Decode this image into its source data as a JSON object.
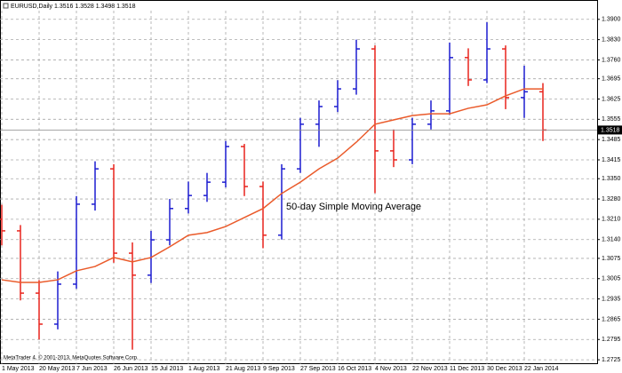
{
  "chart_data": {
    "type": "ohlc",
    "title": "EURUSD,Daily  1.3516 1.3528 1.3498 1.3518",
    "footer": "MetaTrader 4, © 2001-2013, MetaQuotes Software Corp.",
    "annotation": "50-day Simple Moving Average",
    "categories": [
      "1 May 2013",
      null,
      "20 May 2013",
      null,
      "7 Jun 2013",
      null,
      "26 Jun 2013",
      null,
      "15 Jul 2013",
      null,
      "1 Aug 2013",
      null,
      "21 Aug 2013",
      null,
      "9 Sep 2013",
      null,
      "27 Sep 2013",
      null,
      "16 Oct 2013",
      null,
      "4 Nov 2013",
      null,
      "22 Nov 2013",
      null,
      "11 Dec 2013",
      null,
      "30 Dec 2013",
      null,
      "22 Jan 2014",
      null
    ],
    "open": [
      1.321,
      1.317,
      1.2955,
      1.2848,
      1.2986,
      1.3262,
      1.3384,
      1.3093,
      1.3017,
      1.3139,
      1.3247,
      1.3292,
      1.3338,
      1.3461,
      1.3323,
      1.3155,
      1.3384,
      1.3538,
      1.3599,
      1.366,
      1.3798,
      1.3446,
      1.3415,
      1.3538,
      1.3584,
      1.3768,
      1.3691,
      1.3798,
      1.363,
      1.365
    ],
    "high": [
      1.326,
      1.319,
      1.3,
      1.303,
      1.329,
      1.341,
      1.34,
      1.313,
      1.317,
      1.328,
      1.334,
      1.337,
      1.348,
      1.347,
      1.334,
      1.34,
      1.356,
      1.362,
      1.369,
      1.383,
      1.381,
      1.352,
      1.356,
      1.362,
      1.382,
      1.38,
      1.389,
      1.381,
      1.374,
      1.368
    ],
    "low": [
      1.312,
      1.293,
      1.2795,
      1.283,
      1.297,
      1.324,
      1.306,
      1.276,
      1.299,
      1.312,
      1.323,
      1.327,
      1.332,
      1.329,
      1.311,
      1.314,
      1.337,
      1.346,
      1.358,
      1.364,
      1.33,
      1.339,
      1.34,
      1.352,
      1.357,
      1.367,
      1.368,
      1.359,
      1.356,
      1.348
    ],
    "close": [
      1.317,
      1.2955,
      1.2848,
      1.2986,
      1.3262,
      1.3384,
      1.3093,
      1.3017,
      1.3139,
      1.3247,
      1.3292,
      1.3338,
      1.3461,
      1.3323,
      1.3155,
      1.3384,
      1.3538,
      1.3599,
      1.366,
      1.3798,
      1.3446,
      1.3415,
      1.3538,
      1.3584,
      1.3768,
      1.3691,
      1.3798,
      1.363,
      1.365,
      1.3518
    ],
    "up_color": "#1c1cd0",
    "down_color": "#e8231c",
    "overlay": {
      "color": "#ea5a2a",
      "values": [
        1.3001,
        1.2992,
        1.2992,
        1.3001,
        1.3032,
        1.3047,
        1.3078,
        1.3063,
        1.3078,
        1.3115,
        1.3155,
        1.3164,
        1.3185,
        1.3216,
        1.3247,
        1.3299,
        1.3338,
        1.3384,
        1.3421,
        1.3476,
        1.3538,
        1.3553,
        1.3568,
        1.3574,
        1.3574,
        1.3593,
        1.3605,
        1.3636,
        1.366,
        1.366
      ]
    },
    "last_price": {
      "value": 1.3518,
      "label": "1.3518"
    },
    "ylim": [
      1.271,
      1.393
    ],
    "yticks": [
      {
        "value": 1.39,
        "label": "1.3900"
      },
      {
        "value": 1.383,
        "label": "1.3830"
      },
      {
        "value": 1.376,
        "label": "1.3760"
      },
      {
        "value": 1.3695,
        "label": "1.3695"
      },
      {
        "value": 1.3625,
        "label": "1.3625"
      },
      {
        "value": 1.3555,
        "label": "1.3555"
      },
      {
        "value": 1.3485,
        "label": "1.3485"
      },
      {
        "value": 1.3415,
        "label": "1.3415"
      },
      {
        "value": 1.335,
        "label": "1.3350"
      },
      {
        "value": 1.328,
        "label": "1.3280"
      },
      {
        "value": 1.321,
        "label": "1.3210"
      },
      {
        "value": 1.314,
        "label": "1.3140"
      },
      {
        "value": 1.3075,
        "label": "1.3075"
      },
      {
        "value": 1.3005,
        "label": "1.3005"
      },
      {
        "value": 1.2935,
        "label": "1.2935"
      },
      {
        "value": 1.2865,
        "label": "1.2865"
      },
      {
        "value": 1.2795,
        "label": "1.2795"
      },
      {
        "value": 1.2725,
        "label": "1.2725"
      }
    ],
    "grid": true
  }
}
